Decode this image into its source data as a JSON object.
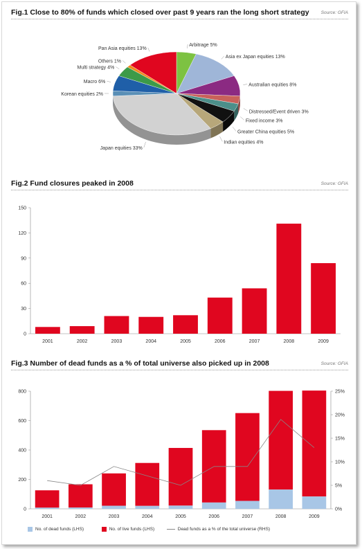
{
  "figures": {
    "fig1": {
      "title": "Fig.1  Close to 80% of funds which closed over past 9 years ran the long short strategy",
      "source": "Source: GFIA"
    },
    "fig2": {
      "title": "Fig.2  Fund closures peaked in 2008",
      "source": "Source: GFIA"
    },
    "fig3": {
      "title": "Fig.3  Number of dead funds as a % of total universe also picked up in 2008",
      "source": "Source: GFIA"
    }
  },
  "chart_data": [
    {
      "type": "pie",
      "slices": [
        {
          "label": "Arbitrage 5%",
          "value": 5,
          "color": "#7dc242"
        },
        {
          "label": "Asia ex Japan equities 13%",
          "value": 13,
          "color": "#9fb6d8"
        },
        {
          "label": "Australian equities 8%",
          "value": 8,
          "color": "#8b2a82"
        },
        {
          "label": "Distressed/Event driven 3%",
          "value": 3,
          "color": "#c9615a"
        },
        {
          "label": "Fixed income 3%",
          "value": 3,
          "color": "#4c8f8a"
        },
        {
          "label": "Greater China equities 5%",
          "value": 5,
          "color": "#111111"
        },
        {
          "label": "Indian equities 4%",
          "value": 4,
          "color": "#b7a77a"
        },
        {
          "label": "Japan equities 33%",
          "value": 33,
          "color": "#d2d2d2"
        },
        {
          "label": "Korean equities 2%",
          "value": 2,
          "color": "#5a8fb6"
        },
        {
          "label": "Macro 6%",
          "value": 6,
          "color": "#1f5fa8"
        },
        {
          "label": "Multi strategy 4%",
          "value": 4,
          "color": "#3c9a48"
        },
        {
          "label": "Others 1%",
          "value": 1,
          "color": "#f08a1c"
        },
        {
          "label": "Pan Asia equities 13%",
          "value": 13,
          "color": "#e0061f"
        }
      ]
    },
    {
      "type": "bar",
      "categories": [
        "2001",
        "2002",
        "2003",
        "2004",
        "2005",
        "2006",
        "2007",
        "2008",
        "2009"
      ],
      "values": [
        8,
        9,
        21,
        20,
        22,
        43,
        54,
        131,
        84
      ],
      "ylim": [
        0,
        150
      ],
      "yticks": [
        0,
        30,
        60,
        90,
        120,
        150
      ],
      "color": "#e0061f"
    },
    {
      "type": "bar",
      "stacked": true,
      "categories": [
        "2001",
        "2002",
        "2003",
        "2004",
        "2005",
        "2006",
        "2007",
        "2008",
        "2009"
      ],
      "series": [
        {
          "name": "No. of dead funds (LHS)",
          "values": [
            8,
            9,
            21,
            20,
            22,
            43,
            54,
            131,
            84
          ],
          "color": "#a8c6e6"
        },
        {
          "name": "No. of live funds (LHS)",
          "values": [
            118,
            158,
            220,
            292,
            392,
            492,
            597,
            671,
            720
          ],
          "color": "#e0061f"
        },
        {
          "name": "Dead funds as a % of the total universe (RHS)",
          "axis": "right",
          "values": [
            6,
            5,
            9,
            7,
            5,
            9,
            9,
            19,
            13
          ],
          "color": "#888888"
        }
      ],
      "ylim": [
        0,
        800
      ],
      "yticks": [
        0,
        200,
        400,
        600,
        800
      ],
      "y2lim": [
        0,
        25
      ],
      "y2ticks": [
        "0%",
        "5%",
        "10%",
        "15%",
        "20%",
        "25%"
      ]
    }
  ]
}
